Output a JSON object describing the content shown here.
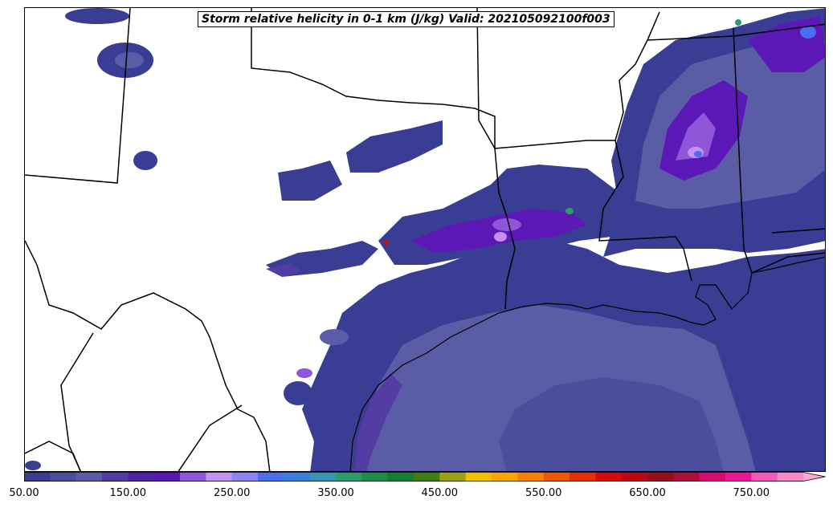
{
  "title": "Storm relative helicity in 0-1 km (J/kg) Valid: 202105092100f003",
  "colorbar": {
    "min": 50,
    "step": 25,
    "colors": [
      "#3a3d94",
      "#4b4e9d",
      "#5b5ca6",
      "#533da5",
      "#4d23a8",
      "#5c18b7",
      "#8f56d9",
      "#c392f0",
      "#8c85f5",
      "#4d6df0",
      "#3a7ee0",
      "#3993b5",
      "#2e9b6a",
      "#208b47",
      "#167c30",
      "#3f7f12",
      "#9aa015",
      "#f1bf00",
      "#f9a600",
      "#f98000",
      "#f05800",
      "#e33000",
      "#d50b0b",
      "#b70813",
      "#980f1a",
      "#ad0e3a",
      "#d40c6e",
      "#eb1696",
      "#f55ab8",
      "#f889c9"
    ],
    "extend_color": "#fba8d4",
    "tick_labels": [
      "50.00",
      "150.00",
      "250.00",
      "350.00",
      "450.00",
      "550.00",
      "650.00",
      "750.00"
    ]
  },
  "shading_palette": {
    "low": "#3a3d94",
    "mid": "#5b5ca6",
    "purple": "#5c18b7",
    "violet": "#8f56d9",
    "light": "#c392f0",
    "blue": "#4d6df0",
    "green": "#2e9b6a"
  }
}
